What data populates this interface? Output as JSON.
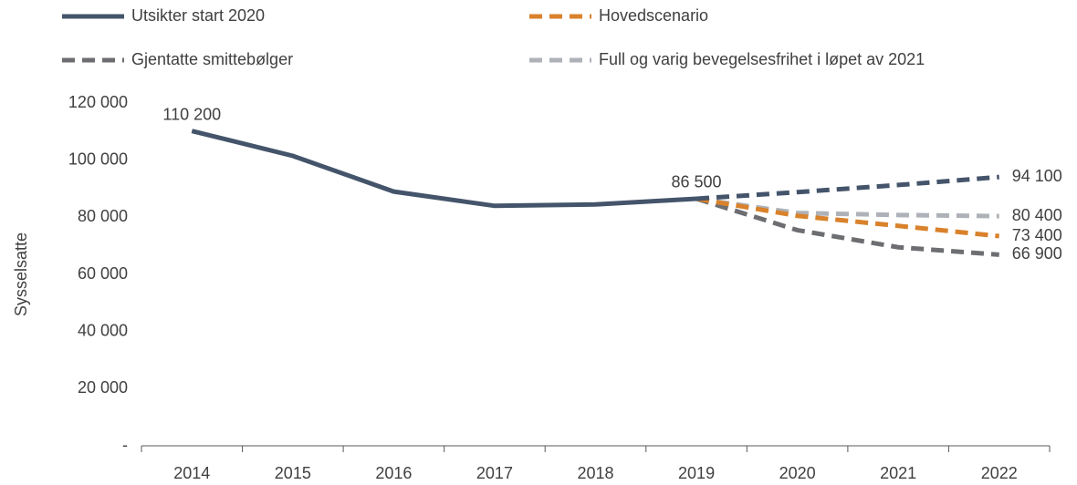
{
  "chart_data": {
    "type": "line",
    "y_label": "Sysselsatte",
    "categories": [
      "2014",
      "2015",
      "2016",
      "2017",
      "2018",
      "2019",
      "2020",
      "2021",
      "2022"
    ],
    "ylim": [
      0,
      120000
    ],
    "yticks": [
      {
        "value": 0,
        "label": "-"
      },
      {
        "value": 20000,
        "label": "20 000"
      },
      {
        "value": 40000,
        "label": "40 000"
      },
      {
        "value": 60000,
        "label": "60 000"
      },
      {
        "value": 80000,
        "label": "80 000"
      },
      {
        "value": 100000,
        "label": "100 000"
      },
      {
        "value": 120000,
        "label": "120 000"
      }
    ],
    "series": [
      {
        "name": "Utsikter start 2020",
        "color": "#44546a",
        "dash_from_index": 5,
        "values": [
          110200,
          101500,
          89000,
          84000,
          84500,
          86500,
          88800,
          91300,
          94100
        ],
        "value_labels": [
          "110 200",
          null,
          null,
          null,
          null,
          "86 500",
          null,
          null,
          "94 100"
        ]
      },
      {
        "name": "Hovedscenario",
        "color": "#d9822b",
        "dash_from_index": 0,
        "values": [
          null,
          null,
          null,
          null,
          null,
          86500,
          80500,
          77000,
          73400
        ],
        "value_labels": [
          null,
          null,
          null,
          null,
          null,
          null,
          null,
          null,
          "73 400"
        ]
      },
      {
        "name": "Gjentatte smittebølger",
        "color": "#6d6e71",
        "dash_from_index": 0,
        "values": [
          null,
          null,
          null,
          null,
          null,
          86500,
          75500,
          69500,
          66900
        ],
        "value_labels": [
          null,
          null,
          null,
          null,
          null,
          null,
          null,
          null,
          "66 900"
        ]
      },
      {
        "name": "Full og varig bevegelsesfrihet i løpet av 2021",
        "color": "#aeb2b8",
        "dash_from_index": 0,
        "values": [
          null,
          null,
          null,
          null,
          null,
          86500,
          81500,
          80800,
          80400
        ],
        "value_labels": [
          null,
          null,
          null,
          null,
          null,
          null,
          null,
          null,
          "80 400"
        ]
      }
    ]
  }
}
